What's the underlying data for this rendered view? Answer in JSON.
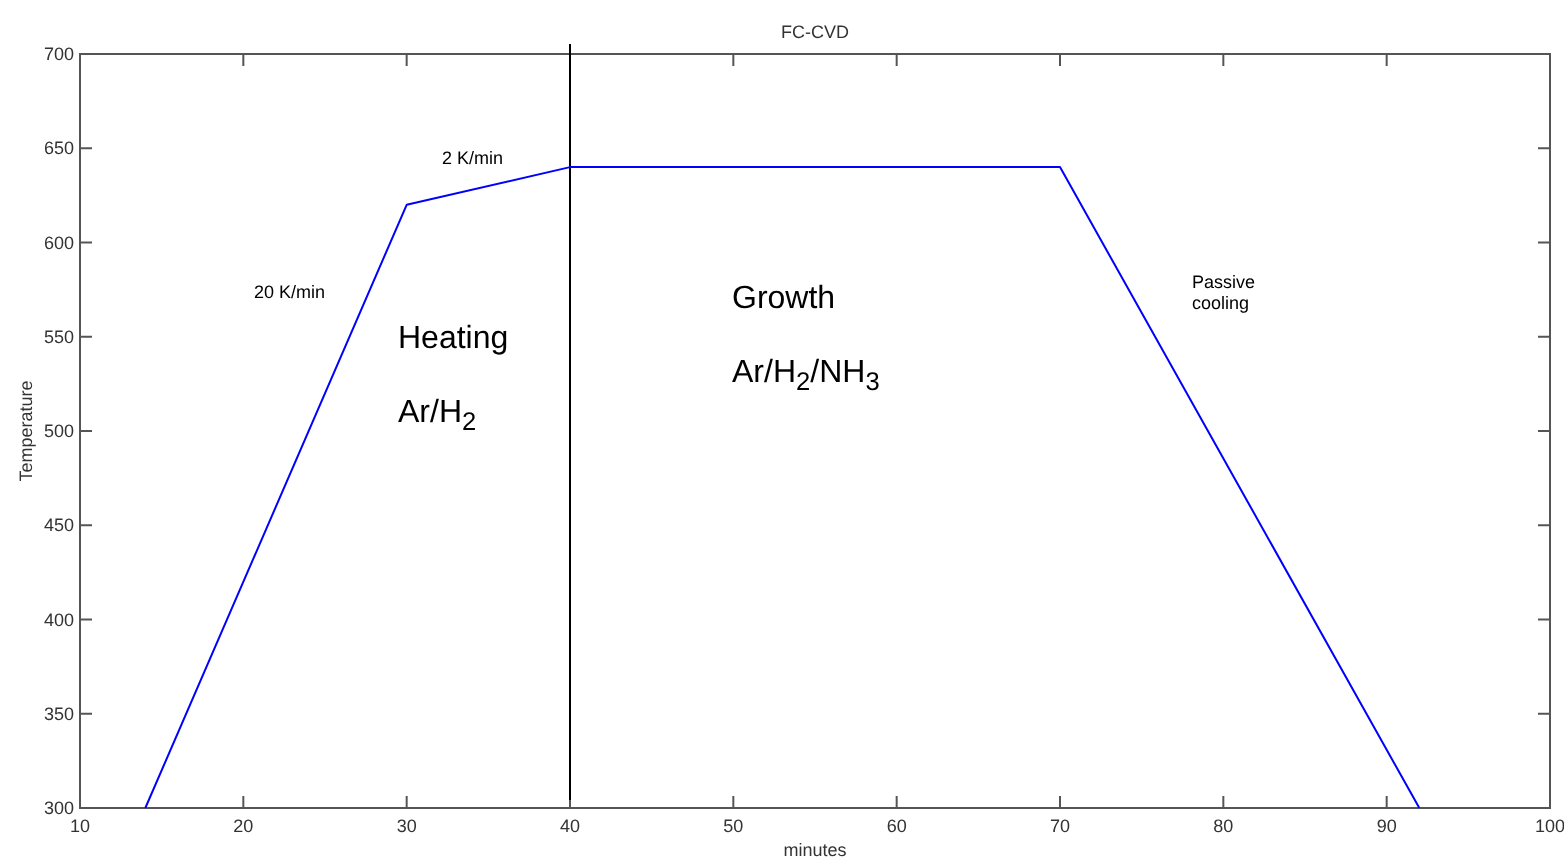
{
  "chart_data": {
    "type": "line",
    "title": "FC-CVD",
    "xlabel": "minutes",
    "ylabel": "Temperature",
    "x": [
      14,
      30,
      40,
      70,
      92
    ],
    "series": [
      {
        "color": "#0000ff",
        "values": [
          300,
          620,
          640,
          640,
          300
        ]
      }
    ],
    "xlim": [
      10,
      100
    ],
    "xticks": [
      10,
      20,
      30,
      40,
      50,
      60,
      70,
      80,
      90,
      100
    ],
    "ylim": [
      300,
      700
    ],
    "yticks": [
      300,
      350,
      400,
      450,
      500,
      550,
      600,
      650,
      700
    ],
    "grid": false,
    "marker": "none",
    "line_style": "solid",
    "ref_lines": [
      {
        "axis": "x",
        "value": 40,
        "color": "#000000"
      }
    ],
    "annotations": [
      "20 K/min",
      "2 K/min",
      "Heating",
      "Ar/H$_{2}$",
      "Growth",
      "Ar/H$_{2}$/NH$_{3}$",
      "Passive\ncooling"
    ]
  }
}
